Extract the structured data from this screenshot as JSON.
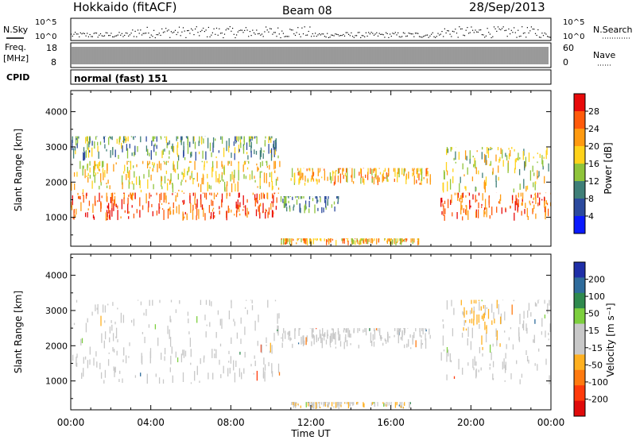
{
  "header": {
    "station": "Hokkaido (fitACF)",
    "beam": "Beam 08",
    "date": "28/Sep/2013"
  },
  "strips": {
    "nsky": {
      "label": "N.Sky",
      "tick_high": "10^5",
      "tick_low": "10^0"
    },
    "nsearch": {
      "label": "N.Search"
    },
    "freq": {
      "label_line1": "Freq.",
      "label_line2": "[MHz]",
      "ticks": [
        "18",
        "8"
      ]
    },
    "nave": {
      "label": "Nave",
      "ticks": [
        "60",
        "0"
      ]
    },
    "cpid": {
      "label": "CPID",
      "value": "normal (fast) 151"
    }
  },
  "chart_data": [
    {
      "type": "heatmap",
      "title": "",
      "xlabel": "Time UT",
      "ylabel": "Slant Range [km]",
      "x_ticks": [
        "00:00",
        "04:00",
        "08:00",
        "12:00",
        "16:00",
        "20:00",
        "00:00"
      ],
      "x_range_hours": [
        0,
        24
      ],
      "ylim": [
        180,
        4600
      ],
      "y_ticks": [
        "1000",
        "2000",
        "3000",
        "4000"
      ],
      "y_tick_values": [
        1000,
        2000,
        3000,
        4000
      ],
      "colorbar": {
        "label": "Power [dB]",
        "tick_labels": [
          "4",
          "8",
          "12",
          "16",
          "20",
          "24",
          "28"
        ],
        "tick_values": [
          4,
          8,
          12,
          16,
          20,
          24,
          28
        ],
        "range": [
          0,
          32
        ]
      },
      "regions": [
        {
          "t_start": 0.0,
          "t_end": 10.5,
          "r_min": 900,
          "r_max": 1700,
          "power": 26
        },
        {
          "t_start": 0.0,
          "t_end": 10.5,
          "r_min": 1700,
          "r_max": 2600,
          "power": 18
        },
        {
          "t_start": 0.0,
          "t_end": 10.5,
          "r_min": 2600,
          "r_max": 3300,
          "power": 12
        },
        {
          "t_start": 10.5,
          "t_end": 13.5,
          "r_min": 1100,
          "r_max": 1600,
          "power": 10
        },
        {
          "t_start": 11.0,
          "t_end": 18.0,
          "r_min": 1900,
          "r_max": 2400,
          "power": 20
        },
        {
          "t_start": 18.5,
          "t_end": 24.0,
          "r_min": 900,
          "r_max": 1700,
          "power": 26
        },
        {
          "t_start": 18.5,
          "t_end": 24.0,
          "r_min": 1700,
          "r_max": 3000,
          "power": 16
        },
        {
          "t_start": 10.5,
          "t_end": 17.5,
          "r_min": 200,
          "r_max": 400,
          "power": 20
        }
      ]
    },
    {
      "type": "heatmap",
      "title": "",
      "xlabel": "Time UT",
      "ylabel": "Slant Range [km]",
      "x_ticks": [
        "00:00",
        "04:00",
        "08:00",
        "12:00",
        "16:00",
        "20:00",
        "00:00"
      ],
      "x_range_hours": [
        0,
        24
      ],
      "ylim": [
        180,
        4600
      ],
      "y_ticks": [
        "1000",
        "2000",
        "3000",
        "4000"
      ],
      "y_tick_values": [
        1000,
        2000,
        3000,
        4000
      ],
      "colorbar": {
        "label": "Velocity [m s⁻¹]",
        "tick_labels": [
          "200",
          "100",
          "50",
          "15",
          "-15",
          "-50",
          "-100",
          "-200"
        ],
        "range": [
          -250,
          250
        ]
      },
      "regions": [
        {
          "t_start": 0.0,
          "t_end": 10.5,
          "r_min": 900,
          "r_max": 3300,
          "velocity": 0
        },
        {
          "t_start": 10.5,
          "t_end": 18.0,
          "r_min": 1900,
          "r_max": 2500,
          "velocity": 0
        },
        {
          "t_start": 18.5,
          "t_end": 24.0,
          "r_min": 900,
          "r_max": 3300,
          "velocity": 0
        },
        {
          "t_start": 19.5,
          "t_end": 21.5,
          "r_min": 1800,
          "r_max": 3300,
          "velocity": 60
        },
        {
          "t_start": 11.0,
          "t_end": 17.0,
          "r_min": 200,
          "r_max": 400,
          "velocity": 40
        }
      ]
    }
  ],
  "colors": {
    "power_scale": [
      "#0a1aff",
      "#2c4a9e",
      "#3f7f78",
      "#8fc43a",
      "#ffd21a",
      "#ff9a10",
      "#ff5a0a",
      "#e80a0a"
    ],
    "velocity_scale": [
      "#1f2fa8",
      "#2f6c9c",
      "#2f8a4e",
      "#7dcf3e",
      "#c8c8c8",
      "#c8c8c8",
      "#ffb020",
      "#ff7a10",
      "#ff3a0a",
      "#e00a0a"
    ]
  }
}
